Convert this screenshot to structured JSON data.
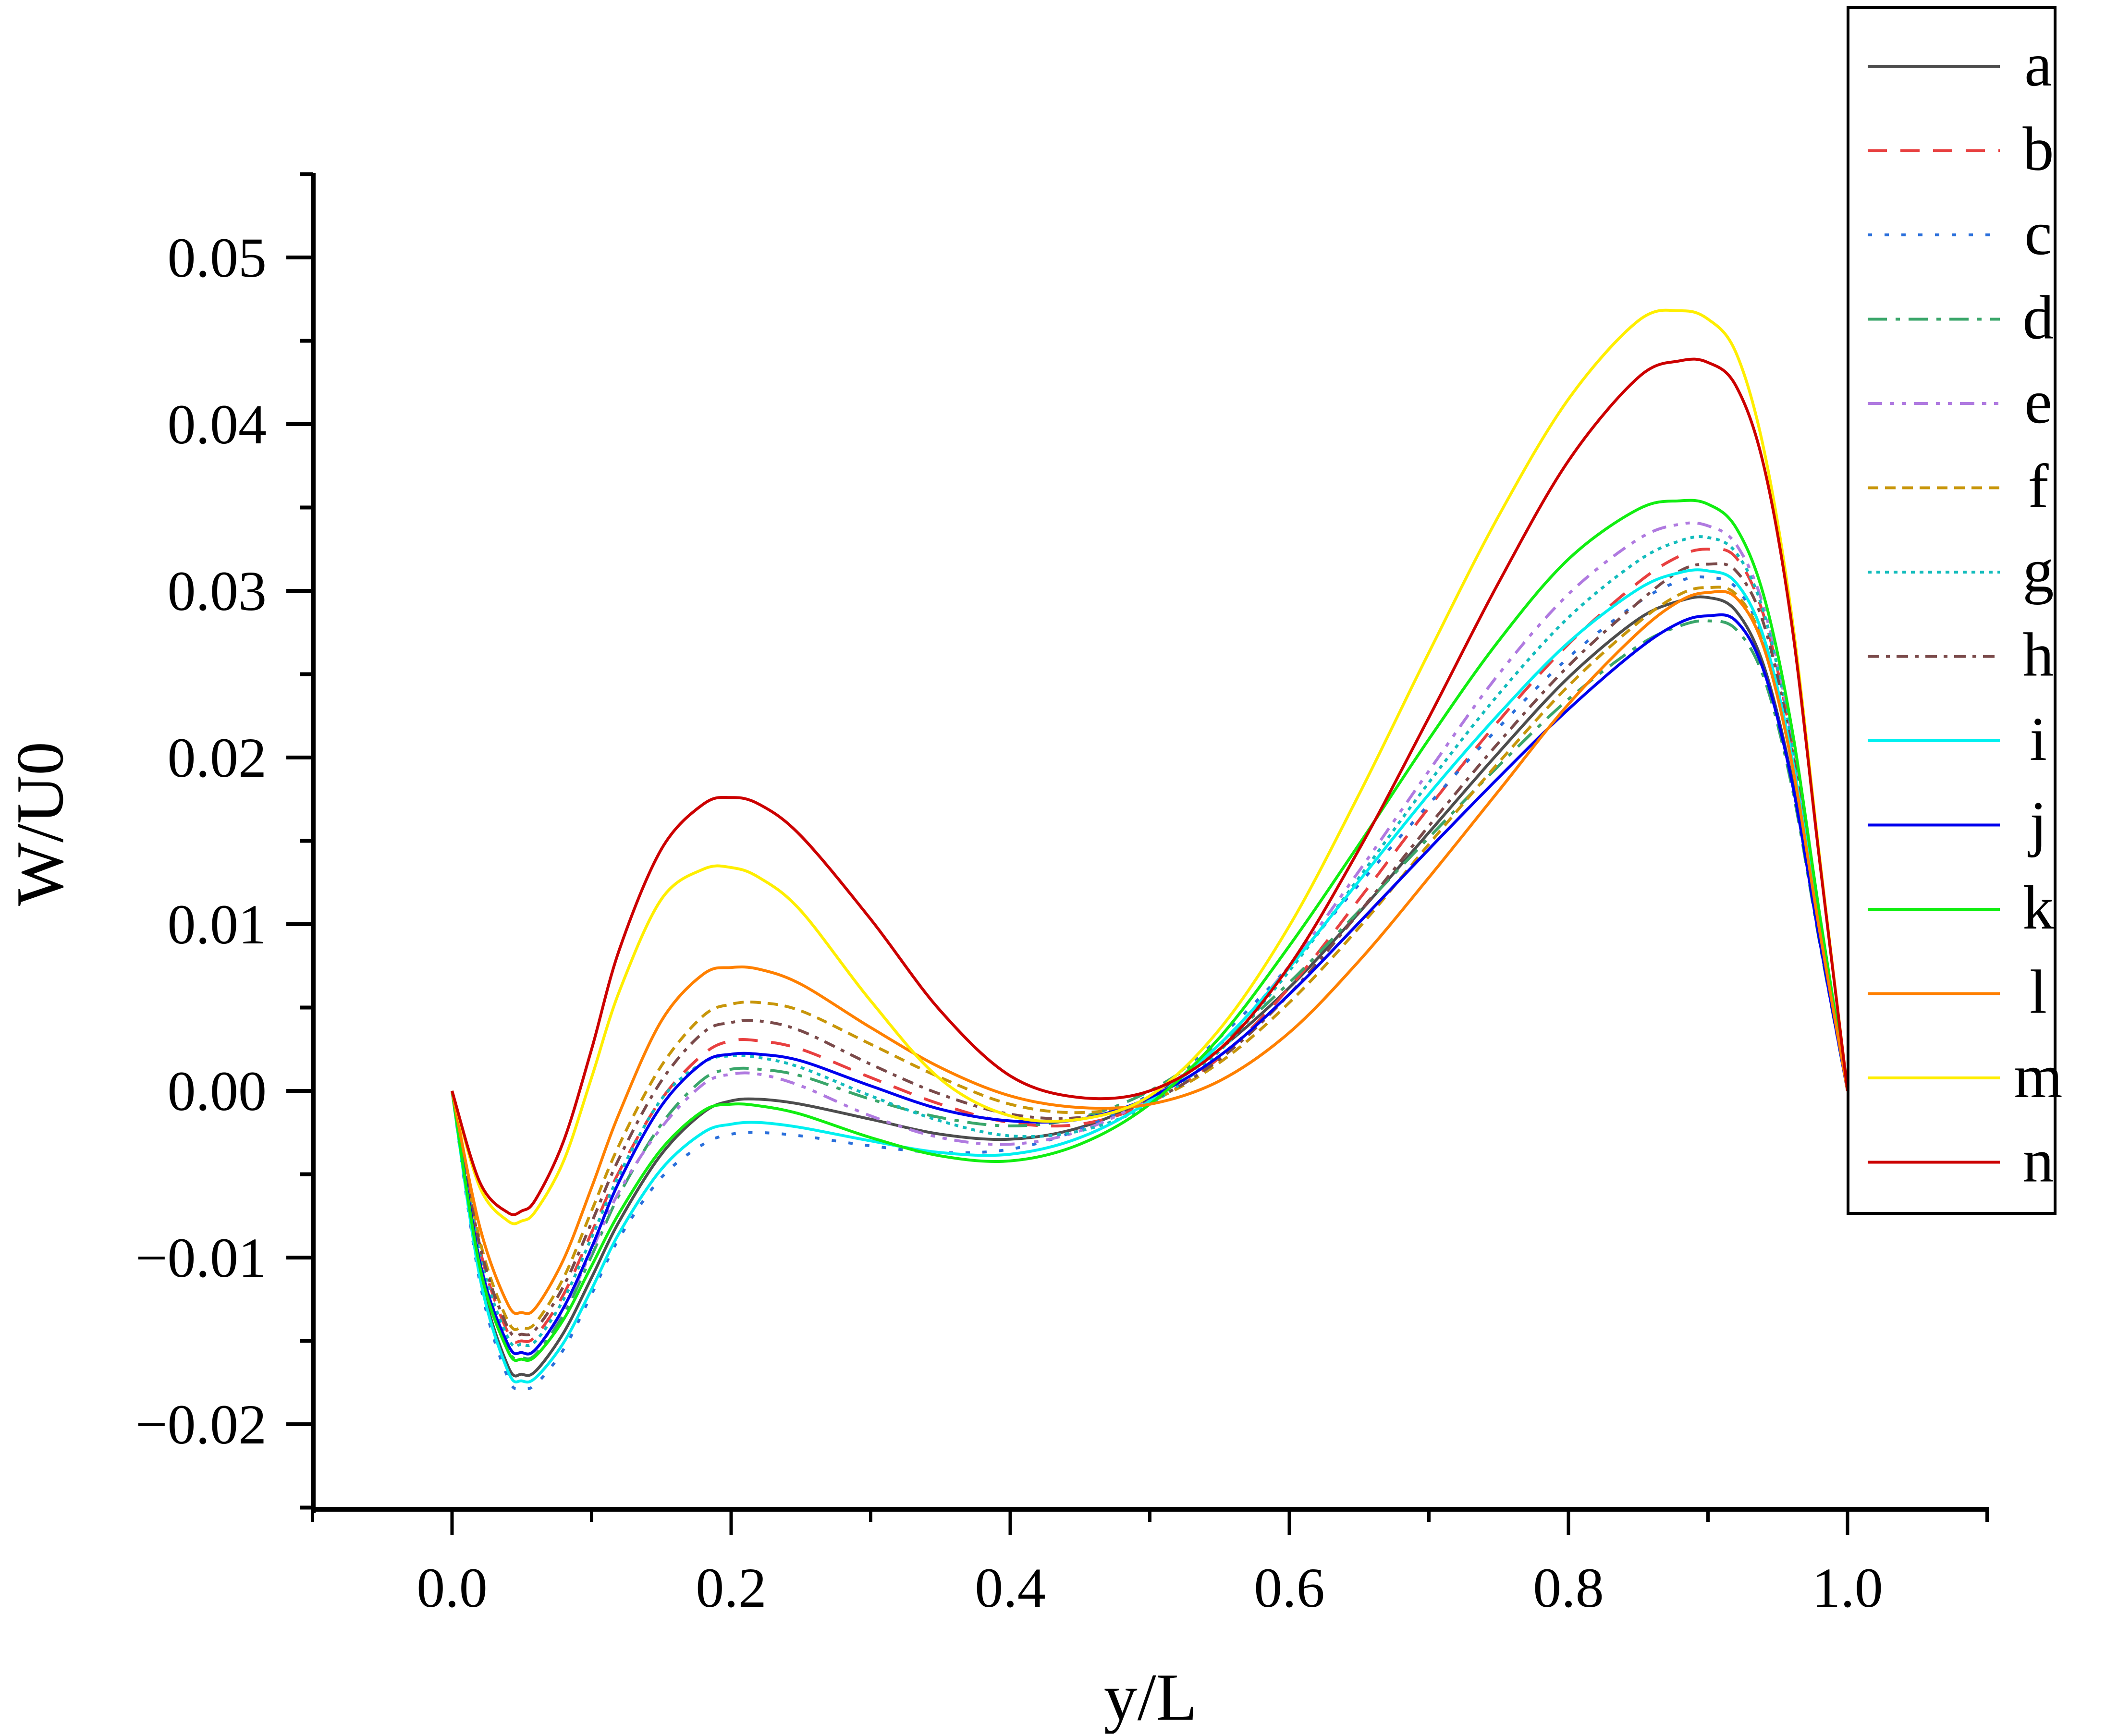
{
  "chart_data": {
    "type": "line",
    "title": "",
    "xlabel": "y/L",
    "ylabel": "W/U0",
    "xlim": [
      -0.1,
      1.1
    ],
    "ylim": [
      -0.025,
      0.055
    ],
    "grid": false,
    "legend_position": "right-outside-top",
    "x_ticks": [
      "0.0",
      "0.2",
      "0.4",
      "0.6",
      "0.8",
      "1.0"
    ],
    "x_tick_values": [
      0.0,
      0.2,
      0.4,
      0.6,
      0.8,
      1.0
    ],
    "y_ticks": [
      "0.05",
      "0.04",
      "0.03",
      "0.02",
      "0.01",
      "0.00",
      "−0.01",
      "−0.02"
    ],
    "y_tick_values": [
      0.05,
      0.04,
      0.03,
      0.02,
      0.01,
      0.0,
      -0.01,
      -0.02
    ],
    "x": [
      0.0,
      0.02,
      0.04,
      0.05,
      0.06,
      0.08,
      0.1,
      0.12,
      0.15,
      0.18,
      0.2,
      0.22,
      0.25,
      0.3,
      0.35,
      0.4,
      0.45,
      0.5,
      0.55,
      0.6,
      0.65,
      0.7,
      0.75,
      0.8,
      0.85,
      0.88,
      0.9,
      0.92,
      0.94,
      0.96,
      0.98,
      1.0
    ],
    "series": [
      {
        "name": "a",
        "color": "#4d4d4d",
        "dash": "solid",
        "values": [
          0.0,
          -0.011,
          -0.0165,
          -0.017,
          -0.0168,
          -0.0145,
          -0.0112,
          -0.0078,
          -0.0038,
          -0.0013,
          -0.0006,
          -0.0005,
          -0.0008,
          -0.0017,
          -0.0026,
          -0.0029,
          -0.0022,
          -0.0004,
          0.0025,
          0.0062,
          0.0107,
          0.0155,
          0.0203,
          0.0248,
          0.0283,
          0.0294,
          0.0296,
          0.0288,
          0.0255,
          0.0188,
          0.0092,
          0.0
        ]
      },
      {
        "name": "b",
        "color": "#e84040",
        "dash": "dashed",
        "values": [
          0.0,
          -0.0095,
          -0.0145,
          -0.015,
          -0.0147,
          -0.0122,
          -0.0085,
          -0.0048,
          -0.0005,
          0.0022,
          0.003,
          0.003,
          0.0025,
          0.0008,
          -0.0008,
          -0.0019,
          -0.002,
          -0.0007,
          0.002,
          0.0062,
          0.0115,
          0.017,
          0.0222,
          0.0268,
          0.0305,
          0.0321,
          0.0325,
          0.032,
          0.0285,
          0.021,
          0.0102,
          0.0
        ]
      },
      {
        "name": "c",
        "color": "#2a6fdb",
        "dash": "dotted",
        "values": [
          0.0,
          -0.0115,
          -0.0172,
          -0.0178,
          -0.0176,
          -0.0155,
          -0.0122,
          -0.0088,
          -0.0052,
          -0.0032,
          -0.0026,
          -0.0025,
          -0.0027,
          -0.0033,
          -0.0037,
          -0.0035,
          -0.0023,
          -0.0002,
          0.0032,
          0.0075,
          0.0124,
          0.0172,
          0.0218,
          0.026,
          0.0293,
          0.0306,
          0.0308,
          0.0302,
          0.027,
          0.02,
          0.0098,
          0.0
        ]
      },
      {
        "name": "d",
        "color": "#3aa66a",
        "dash": "dashdot",
        "values": [
          0.0,
          -0.0105,
          -0.0155,
          -0.016,
          -0.0158,
          -0.0134,
          -0.0099,
          -0.0062,
          -0.002,
          0.0007,
          0.0013,
          0.0013,
          0.0009,
          -0.0005,
          -0.0016,
          -0.0021,
          -0.0016,
          0.0,
          0.0028,
          0.0065,
          0.0108,
          0.0152,
          0.0195,
          0.0235,
          0.0267,
          0.0279,
          0.0282,
          0.0277,
          0.0248,
          0.0183,
          0.0089,
          0.0
        ]
      },
      {
        "name": "e",
        "color": "#b07ae0",
        "dash": "dashdotdot",
        "values": [
          0.0,
          -0.0102,
          -0.0152,
          -0.0157,
          -0.0155,
          -0.0131,
          -0.0096,
          -0.006,
          -0.0022,
          0.0004,
          0.001,
          0.001,
          0.0003,
          -0.0015,
          -0.0028,
          -0.0032,
          -0.0024,
          -0.0004,
          0.0028,
          0.0075,
          0.0132,
          0.0192,
          0.025,
          0.0298,
          0.0331,
          0.034,
          0.0339,
          0.0328,
          0.029,
          0.0213,
          0.0103,
          0.0
        ]
      },
      {
        "name": "f",
        "color": "#c8960a",
        "dash": "shortdash",
        "values": [
          0.0,
          -0.009,
          -0.0138,
          -0.0142,
          -0.0139,
          -0.0112,
          -0.0072,
          -0.0032,
          0.0015,
          0.0045,
          0.0052,
          0.0053,
          0.0048,
          0.0028,
          0.0008,
          -0.0008,
          -0.0013,
          -0.0006,
          0.0017,
          0.0053,
          0.0098,
          0.0148,
          0.0197,
          0.0243,
          0.0281,
          0.0298,
          0.0302,
          0.0298,
          0.0268,
          0.0198,
          0.0097,
          0.0
        ]
      },
      {
        "name": "g",
        "color": "#12bcbc",
        "dash": "shortdot",
        "values": [
          0.0,
          -0.0098,
          -0.0148,
          -0.0152,
          -0.015,
          -0.0125,
          -0.0088,
          -0.005,
          -0.0005,
          0.0017,
          0.0021,
          0.002,
          0.0014,
          -0.0003,
          -0.0018,
          -0.0027,
          -0.0024,
          -0.0008,
          0.0024,
          0.0072,
          0.0128,
          0.0185,
          0.0238,
          0.0284,
          0.0318,
          0.033,
          0.0332,
          0.0323,
          0.0287,
          0.021,
          0.0102,
          0.0
        ]
      },
      {
        "name": "h",
        "color": "#7a4a4a",
        "dash": "dashdot-short",
        "values": [
          0.0,
          -0.0093,
          -0.0142,
          -0.0146,
          -0.0143,
          -0.0117,
          -0.0079,
          -0.004,
          0.0006,
          0.0035,
          0.0041,
          0.0042,
          0.0036,
          0.0016,
          -0.0002,
          -0.0014,
          -0.0016,
          -0.0006,
          0.0019,
          0.0058,
          0.0107,
          0.0159,
          0.0209,
          0.0255,
          0.0293,
          0.0312,
          0.0316,
          0.0312,
          0.028,
          0.0206,
          0.01,
          0.0
        ]
      },
      {
        "name": "i",
        "color": "#00f0f0",
        "dash": "solid",
        "values": [
          0.0,
          -0.0112,
          -0.0168,
          -0.0174,
          -0.0172,
          -0.0151,
          -0.0119,
          -0.0085,
          -0.0047,
          -0.0025,
          -0.002,
          -0.0019,
          -0.0022,
          -0.003,
          -0.0037,
          -0.0038,
          -0.0028,
          -0.0006,
          0.0028,
          0.0074,
          0.0126,
          0.0178,
          0.0226,
          0.0269,
          0.0301,
          0.0311,
          0.0312,
          0.0305,
          0.0272,
          0.0201,
          0.0098,
          0.0
        ]
      },
      {
        "name": "j",
        "color": "#0000ee",
        "dash": "solid",
        "values": [
          0.0,
          -0.0103,
          -0.0152,
          -0.0157,
          -0.0155,
          -0.013,
          -0.0094,
          -0.0054,
          -0.0009,
          0.0017,
          0.0022,
          0.0022,
          0.0018,
          0.0003,
          -0.0011,
          -0.0018,
          -0.0017,
          -0.0004,
          0.0021,
          0.0058,
          0.0101,
          0.0145,
          0.0188,
          0.0229,
          0.0265,
          0.0281,
          0.0285,
          0.0282,
          0.0252,
          0.0186,
          0.009,
          0.0
        ]
      },
      {
        "name": "k",
        "color": "#11ee11",
        "dash": "solid",
        "values": [
          0.0,
          -0.0106,
          -0.0156,
          -0.0161,
          -0.0159,
          -0.0137,
          -0.0105,
          -0.0073,
          -0.0035,
          -0.0012,
          -0.0008,
          -0.0009,
          -0.0014,
          -0.0028,
          -0.0039,
          -0.0042,
          -0.0032,
          -0.0008,
          0.0032,
          0.0087,
          0.0148,
          0.0211,
          0.027,
          0.0319,
          0.0349,
          0.0354,
          0.0352,
          0.0338,
          0.0297,
          0.0218,
          0.0106,
          0.0
        ]
      },
      {
        "name": "l",
        "color": "#ff8000",
        "dash": "solid",
        "values": [
          0.0,
          -0.0082,
          -0.0128,
          -0.0133,
          -0.013,
          -0.0101,
          -0.0058,
          -0.0013,
          0.0042,
          0.007,
          0.0074,
          0.0073,
          0.0064,
          0.0038,
          0.0014,
          -0.0003,
          -0.001,
          -0.0008,
          0.0006,
          0.0035,
          0.0078,
          0.0128,
          0.018,
          0.0232,
          0.0275,
          0.0294,
          0.0299,
          0.0296,
          0.0266,
          0.0197,
          0.0096,
          0.0
        ]
      },
      {
        "name": "m",
        "color": "#ffee00",
        "dash": "solid",
        "values": [
          0.0,
          -0.0058,
          -0.0078,
          -0.0078,
          -0.0072,
          -0.0042,
          0.0008,
          0.006,
          0.0115,
          0.0133,
          0.0134,
          0.0128,
          0.0108,
          0.0054,
          0.0007,
          -0.0015,
          -0.0017,
          -0.0003,
          0.0037,
          0.0099,
          0.0178,
          0.0263,
          0.0345,
          0.0415,
          0.0462,
          0.0468,
          0.0463,
          0.0443,
          0.0385,
          0.0285,
          0.014,
          0.0
        ]
      },
      {
        "name": "n",
        "color": "#cc0000",
        "dash": "solid",
        "values": [
          0.0,
          -0.0055,
          -0.0073,
          -0.0072,
          -0.0065,
          -0.003,
          0.0025,
          0.0085,
          0.0145,
          0.0172,
          0.0176,
          0.0172,
          0.0153,
          0.0103,
          0.0048,
          0.0009,
          -0.0004,
          0.0,
          0.0025,
          0.0075,
          0.0145,
          0.0224,
          0.0305,
          0.0378,
          0.0428,
          0.0438,
          0.0437,
          0.0423,
          0.0375,
          0.028,
          0.0138,
          0.0
        ]
      }
    ]
  },
  "legend": {
    "items": [
      {
        "label": "a"
      },
      {
        "label": "b"
      },
      {
        "label": "c"
      },
      {
        "label": "d"
      },
      {
        "label": "e"
      },
      {
        "label": "f"
      },
      {
        "label": "g"
      },
      {
        "label": "h"
      },
      {
        "label": "i"
      },
      {
        "label": "j"
      },
      {
        "label": "k"
      },
      {
        "label": "l"
      },
      {
        "label": "m"
      },
      {
        "label": "n"
      }
    ]
  },
  "axes": {
    "x_title": "y/L",
    "y_title": "W/U0"
  }
}
